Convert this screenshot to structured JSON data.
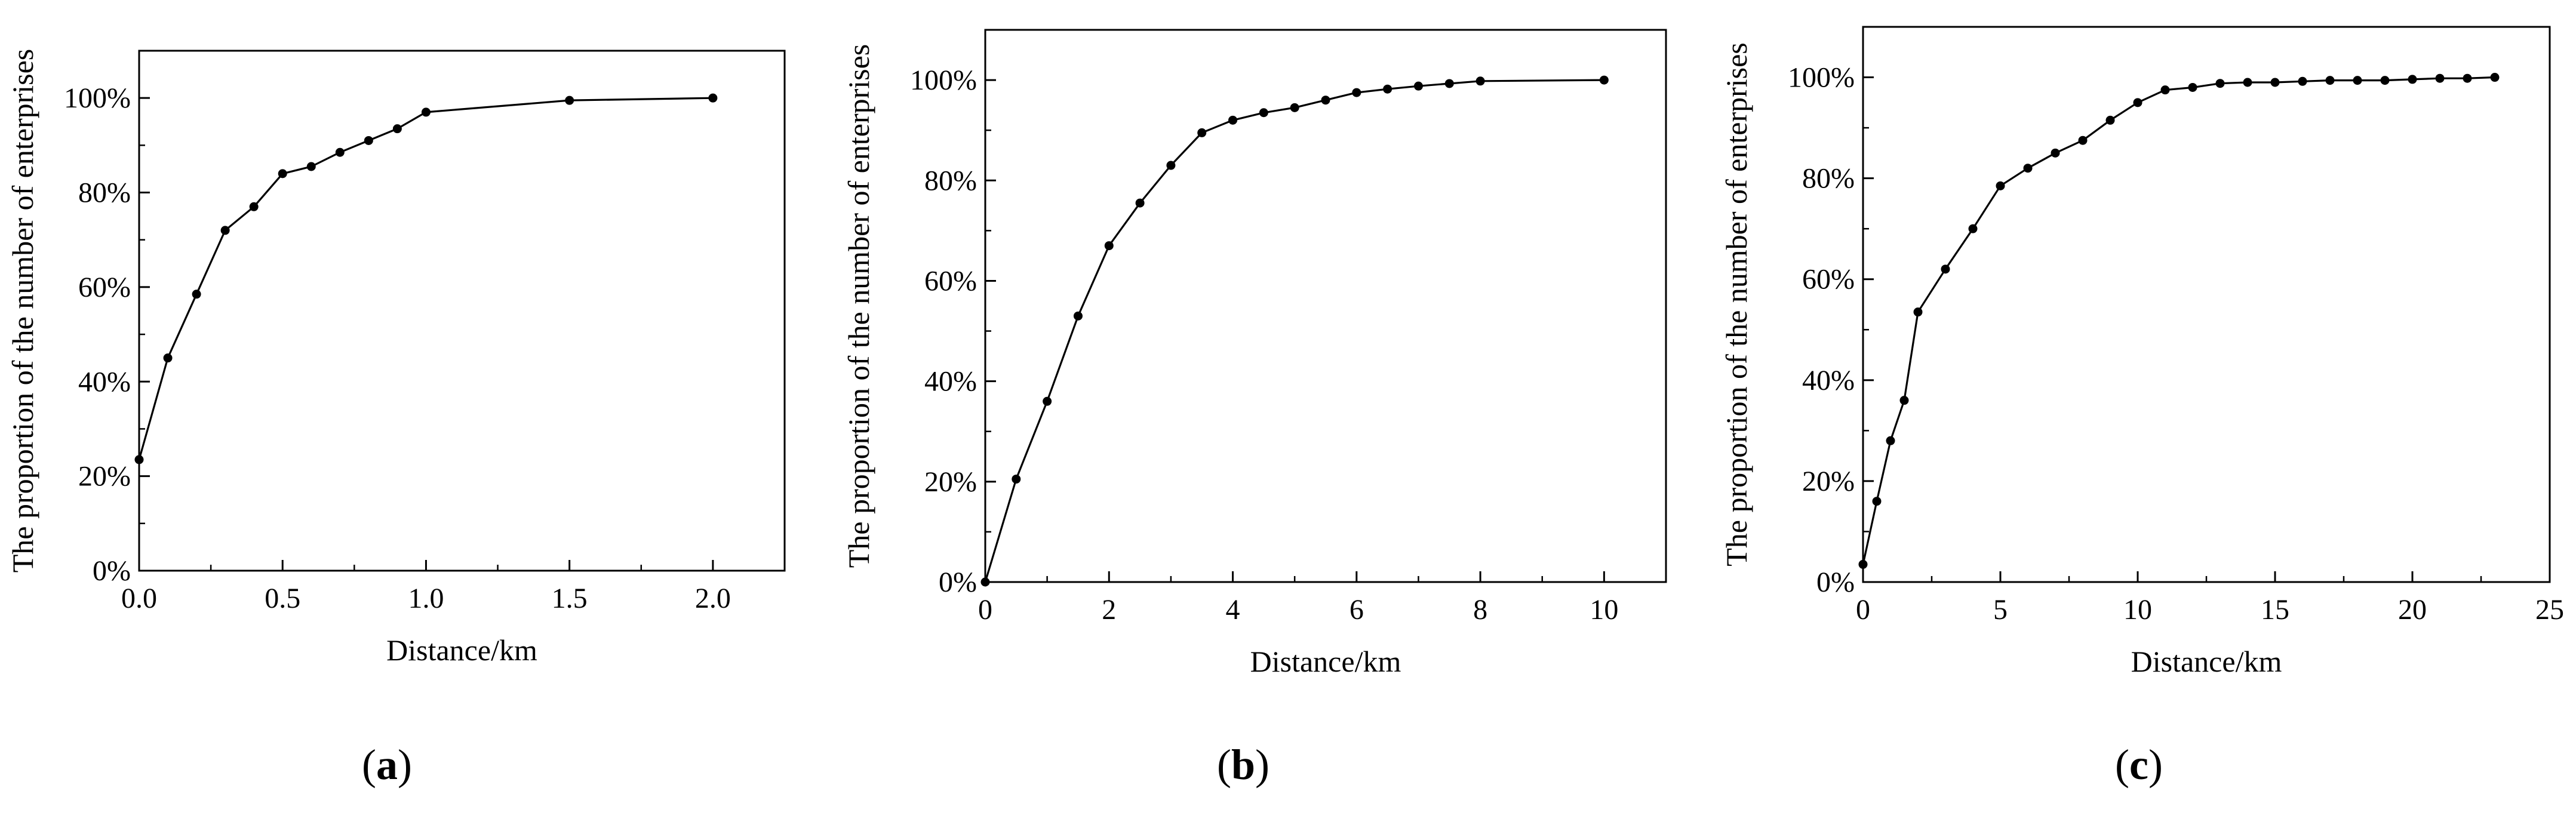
{
  "chart_data": [
    {
      "type": "line",
      "panel_label": "a",
      "xlabel": "Distance/km",
      "ylabel": "The proportion of the number of enterprises",
      "xlim": [
        0,
        2.25
      ],
      "ylim": [
        0,
        110
      ],
      "x_ticks": [
        0.0,
        0.5,
        1.0,
        1.5,
        2.0
      ],
      "x_tick_labels": [
        "0.0",
        "0.5",
        "1.0",
        "1.5",
        "2.0"
      ],
      "y_ticks": [
        0,
        20,
        40,
        60,
        80,
        100
      ],
      "y_tick_labels": [
        "0%",
        "20%",
        "40%",
        "60%",
        "80%",
        "100%"
      ],
      "grid": false,
      "series": [
        {
          "x": [
            0,
            0.1,
            0.2,
            0.3,
            0.4,
            0.5,
            0.6,
            0.7,
            0.8,
            0.9,
            1.0,
            1.5,
            2.0
          ],
          "y": [
            23.5,
            45,
            58.5,
            72,
            77,
            84,
            85.5,
            88.5,
            91,
            93.5,
            97,
            99.5,
            100
          ]
        }
      ]
    },
    {
      "type": "line",
      "panel_label": "b",
      "xlabel": "Distance/km",
      "ylabel": "The proportion of the number of enterprises",
      "xlim": [
        0,
        11
      ],
      "ylim": [
        0,
        110
      ],
      "x_ticks": [
        0,
        2,
        4,
        6,
        8,
        10
      ],
      "x_tick_labels": [
        "0",
        "2",
        "4",
        "6",
        "8",
        "10"
      ],
      "y_ticks": [
        0,
        20,
        40,
        60,
        80,
        100
      ],
      "y_tick_labels": [
        "0%",
        "20%",
        "40%",
        "60%",
        "80%",
        "100%"
      ],
      "grid": false,
      "series": [
        {
          "x": [
            0,
            0.5,
            1,
            1.5,
            2,
            2.5,
            3,
            3.5,
            4,
            4.5,
            5,
            5.5,
            6,
            6.5,
            7,
            7.5,
            8,
            10
          ],
          "y": [
            0,
            20.5,
            36,
            53,
            67,
            75.5,
            83,
            89.5,
            92,
            93.5,
            94.5,
            96,
            97.5,
            98.2,
            98.8,
            99.3,
            99.8,
            100
          ]
        }
      ]
    },
    {
      "type": "line",
      "panel_label": "c",
      "xlabel": "Distance/km",
      "ylabel": "The proportion of the number of enterprises",
      "xlim": [
        0,
        25
      ],
      "ylim": [
        0,
        110
      ],
      "x_ticks": [
        0,
        5,
        10,
        15,
        20,
        25
      ],
      "x_tick_labels": [
        "0",
        "5",
        "10",
        "15",
        "20",
        "25"
      ],
      "y_ticks": [
        0,
        20,
        40,
        60,
        80,
        100
      ],
      "y_tick_labels": [
        "0%",
        "20%",
        "40%",
        "60%",
        "80%",
        "100%"
      ],
      "grid": false,
      "series": [
        {
          "x": [
            0,
            0.5,
            1,
            1.5,
            2,
            3,
            4,
            5,
            6,
            7,
            8,
            9,
            10,
            11,
            12,
            13,
            14,
            15,
            16,
            17,
            18,
            19,
            20,
            21,
            22,
            23
          ],
          "y": [
            3.5,
            16,
            28,
            36,
            53.5,
            62,
            70,
            78.5,
            82,
            85,
            87.5,
            91.5,
            95,
            97.5,
            98,
            98.8,
            99,
            99,
            99.2,
            99.4,
            99.4,
            99.4,
            99.6,
            99.8,
            99.8,
            100
          ]
        }
      ]
    }
  ]
}
